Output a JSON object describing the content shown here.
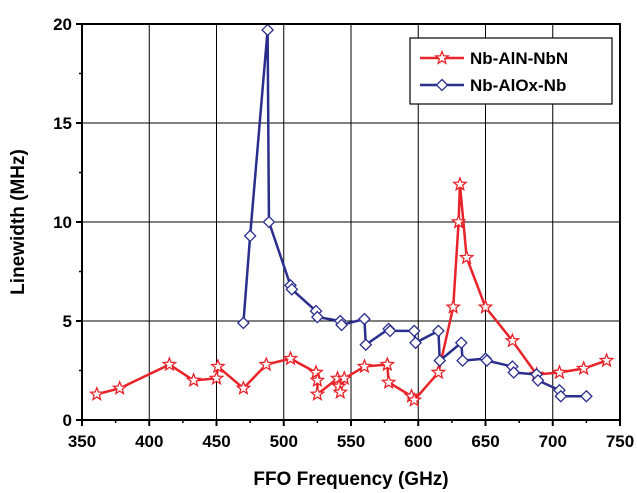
{
  "chart_data": {
    "type": "line",
    "xlabel": "FFO Frequency (GHz)",
    "ylabel": "Linewidth (MHz)",
    "xlim": [
      350,
      750
    ],
    "ylim": [
      0,
      20
    ],
    "xticks": [
      350,
      400,
      450,
      500,
      550,
      600,
      650,
      700,
      750
    ],
    "yticks": [
      0,
      5,
      10,
      15,
      20
    ],
    "grid": true,
    "legend_position": "top-right",
    "series": [
      {
        "name": "Nb-AlN-NbN",
        "color": "#e8232a",
        "marker": "star-open",
        "x": [
          361,
          378,
          415,
          433,
          450,
          451,
          470,
          487,
          505,
          524,
          525,
          525,
          540,
          541,
          542,
          545,
          560,
          577,
          578,
          595,
          597,
          615,
          626,
          630,
          631,
          636,
          650,
          670,
          688,
          705,
          723,
          740
        ],
        "y": [
          1.3,
          1.6,
          2.8,
          2.0,
          2.1,
          2.7,
          1.6,
          2.8,
          3.1,
          2.4,
          2.0,
          1.3,
          2.1,
          1.7,
          1.4,
          2.1,
          2.7,
          2.8,
          1.9,
          1.2,
          1.0,
          2.4,
          5.7,
          10.0,
          11.9,
          8.2,
          5.7,
          4.0,
          2.3,
          2.4,
          2.6,
          3.0
        ]
      },
      {
        "name": "Nb-AlOx-Nb",
        "color": "#2a2e8c",
        "marker": "diamond-open",
        "x": [
          470,
          475,
          488,
          489,
          505,
          506,
          524,
          525,
          542,
          543,
          560,
          561,
          578,
          579,
          597,
          598,
          615,
          616,
          632,
          633,
          650,
          651,
          670,
          671,
          688,
          689,
          705,
          706,
          725
        ],
        "y": [
          4.9,
          9.3,
          19.7,
          10.0,
          6.8,
          6.6,
          5.5,
          5.2,
          5.0,
          4.8,
          5.1,
          3.8,
          4.6,
          4.5,
          4.5,
          3.9,
          4.5,
          3.0,
          3.9,
          3.0,
          3.1,
          3.0,
          2.7,
          2.4,
          2.3,
          2.0,
          1.5,
          1.2,
          1.2
        ]
      }
    ]
  }
}
